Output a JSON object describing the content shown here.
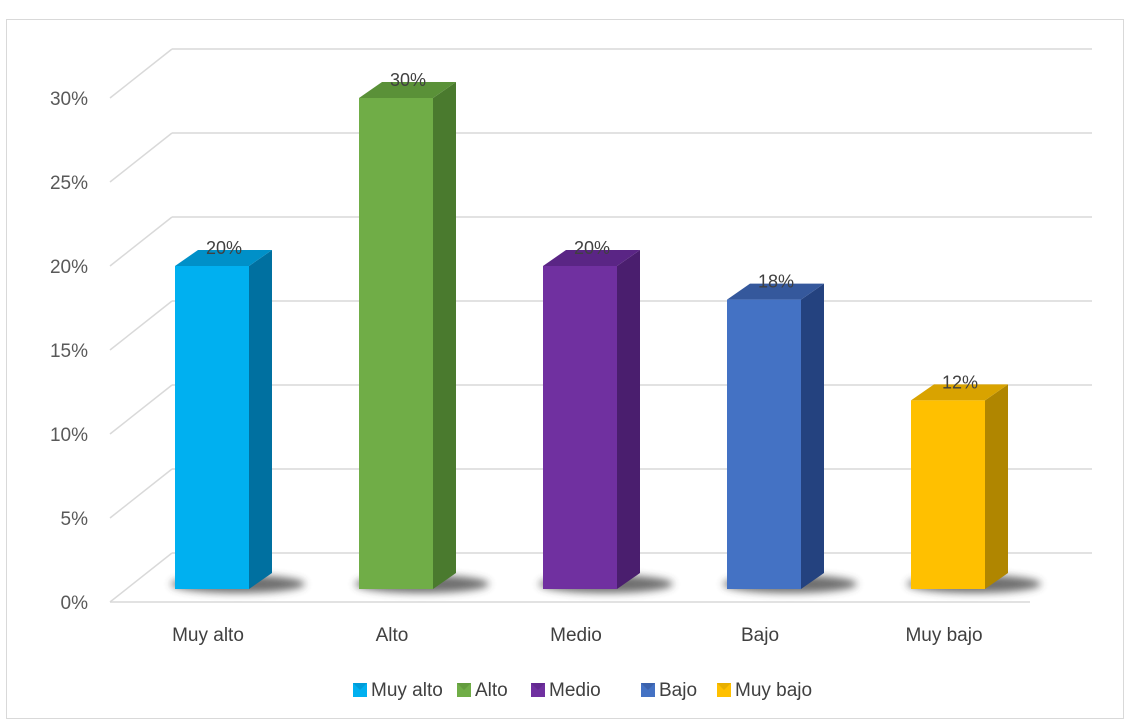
{
  "chart_data": {
    "type": "bar",
    "categories": [
      "Muy alto",
      "Alto",
      "Medio",
      "Bajo",
      "Muy bajo"
    ],
    "values": [
      20,
      30,
      20,
      18,
      12
    ],
    "data_labels": [
      "20%",
      "30%",
      "20%",
      "18%",
      "12%"
    ],
    "ylim": [
      0,
      30
    ],
    "yticks": [
      0,
      5,
      10,
      15,
      20,
      25,
      30
    ],
    "ytick_labels": [
      "0%",
      "5%",
      "10%",
      "15%",
      "20%",
      "25%",
      "30%"
    ],
    "grid": true,
    "legend_position": "bottom",
    "legend": [
      "Muy alto",
      "Alto",
      "Medio",
      "Bajo",
      "Muy bajo"
    ],
    "colors": {
      "front": [
        "#00b0f0",
        "#70ad47",
        "#7030a0",
        "#4472c4",
        "#ffc000"
      ],
      "side": [
        "#0070a0",
        "#4a7a2e",
        "#4a1e6e",
        "#24427f",
        "#b08600"
      ],
      "top": [
        "#0090c8",
        "#5a9138",
        "#5a2585",
        "#35589c",
        "#d9a300"
      ],
      "grid": "#d9d9d9",
      "shadow": "#404040"
    }
  }
}
